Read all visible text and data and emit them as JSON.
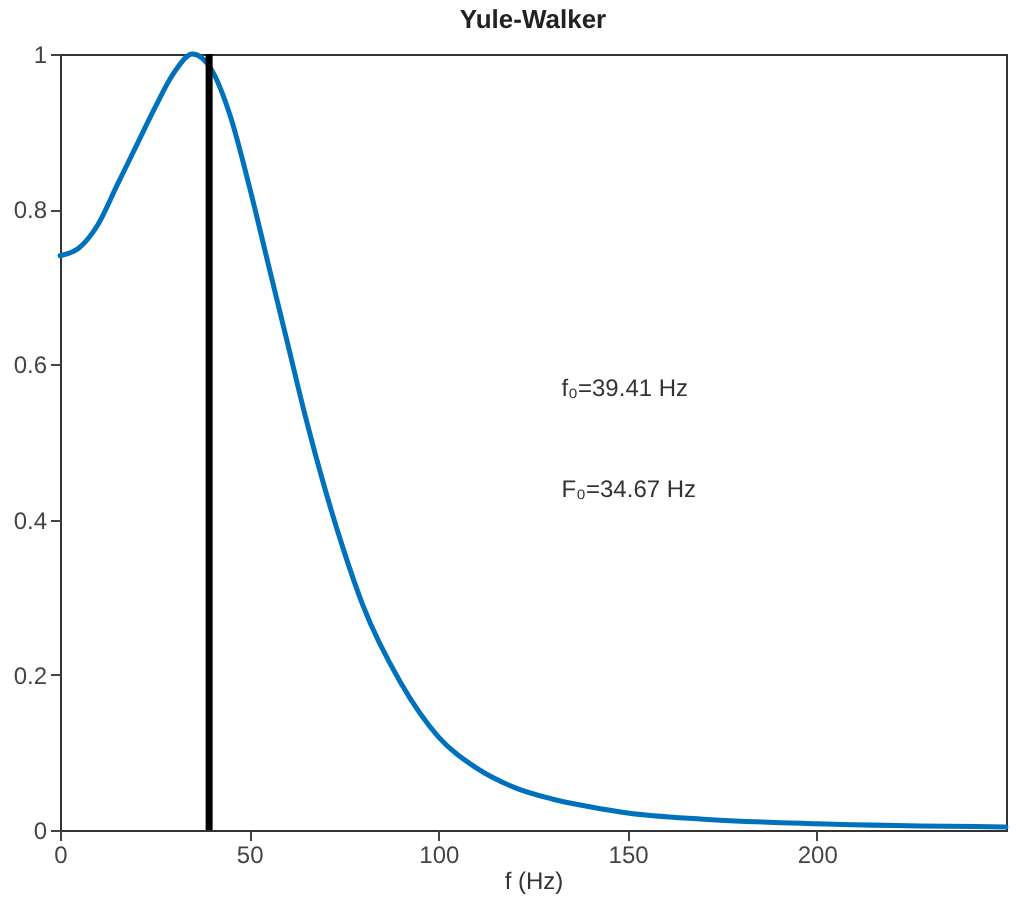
{
  "chart_data": {
    "type": "line",
    "title": "Yule-Walker",
    "xlabel": "f (Hz)",
    "x": [
      0,
      5,
      10,
      15,
      20,
      25,
      30,
      35,
      40,
      45,
      50,
      55,
      60,
      65,
      70,
      75,
      80,
      90,
      100,
      110,
      120,
      130,
      140,
      150,
      170,
      200,
      250
    ],
    "series": [
      {
        "color": "#0072bd",
        "values": [
          0.74,
          0.75,
          0.78,
          0.83,
          0.88,
          0.93,
          0.975,
          1.0,
          0.98,
          0.92,
          0.83,
          0.73,
          0.63,
          0.53,
          0.44,
          0.36,
          0.29,
          0.19,
          0.12,
          0.08,
          0.055,
          0.04,
          0.03,
          0.022,
          0.014,
          0.008,
          0.004
        ]
      }
    ],
    "xlim": [
      0,
      250
    ],
    "xticks": [
      0,
      50,
      100,
      150,
      200
    ],
    "ylim": [
      0,
      1
    ],
    "yticks": [
      0,
      0.2,
      0.4,
      0.6,
      0.8,
      1
    ],
    "grid": false,
    "marker": "none",
    "line_style": "solid",
    "ref_lines": [
      {
        "axis": "x",
        "value": 39.41,
        "color": "#000000"
      }
    ],
    "annotations": [
      "f₀=39.41 Hz",
      "F₀=34.67 Hz"
    ]
  }
}
